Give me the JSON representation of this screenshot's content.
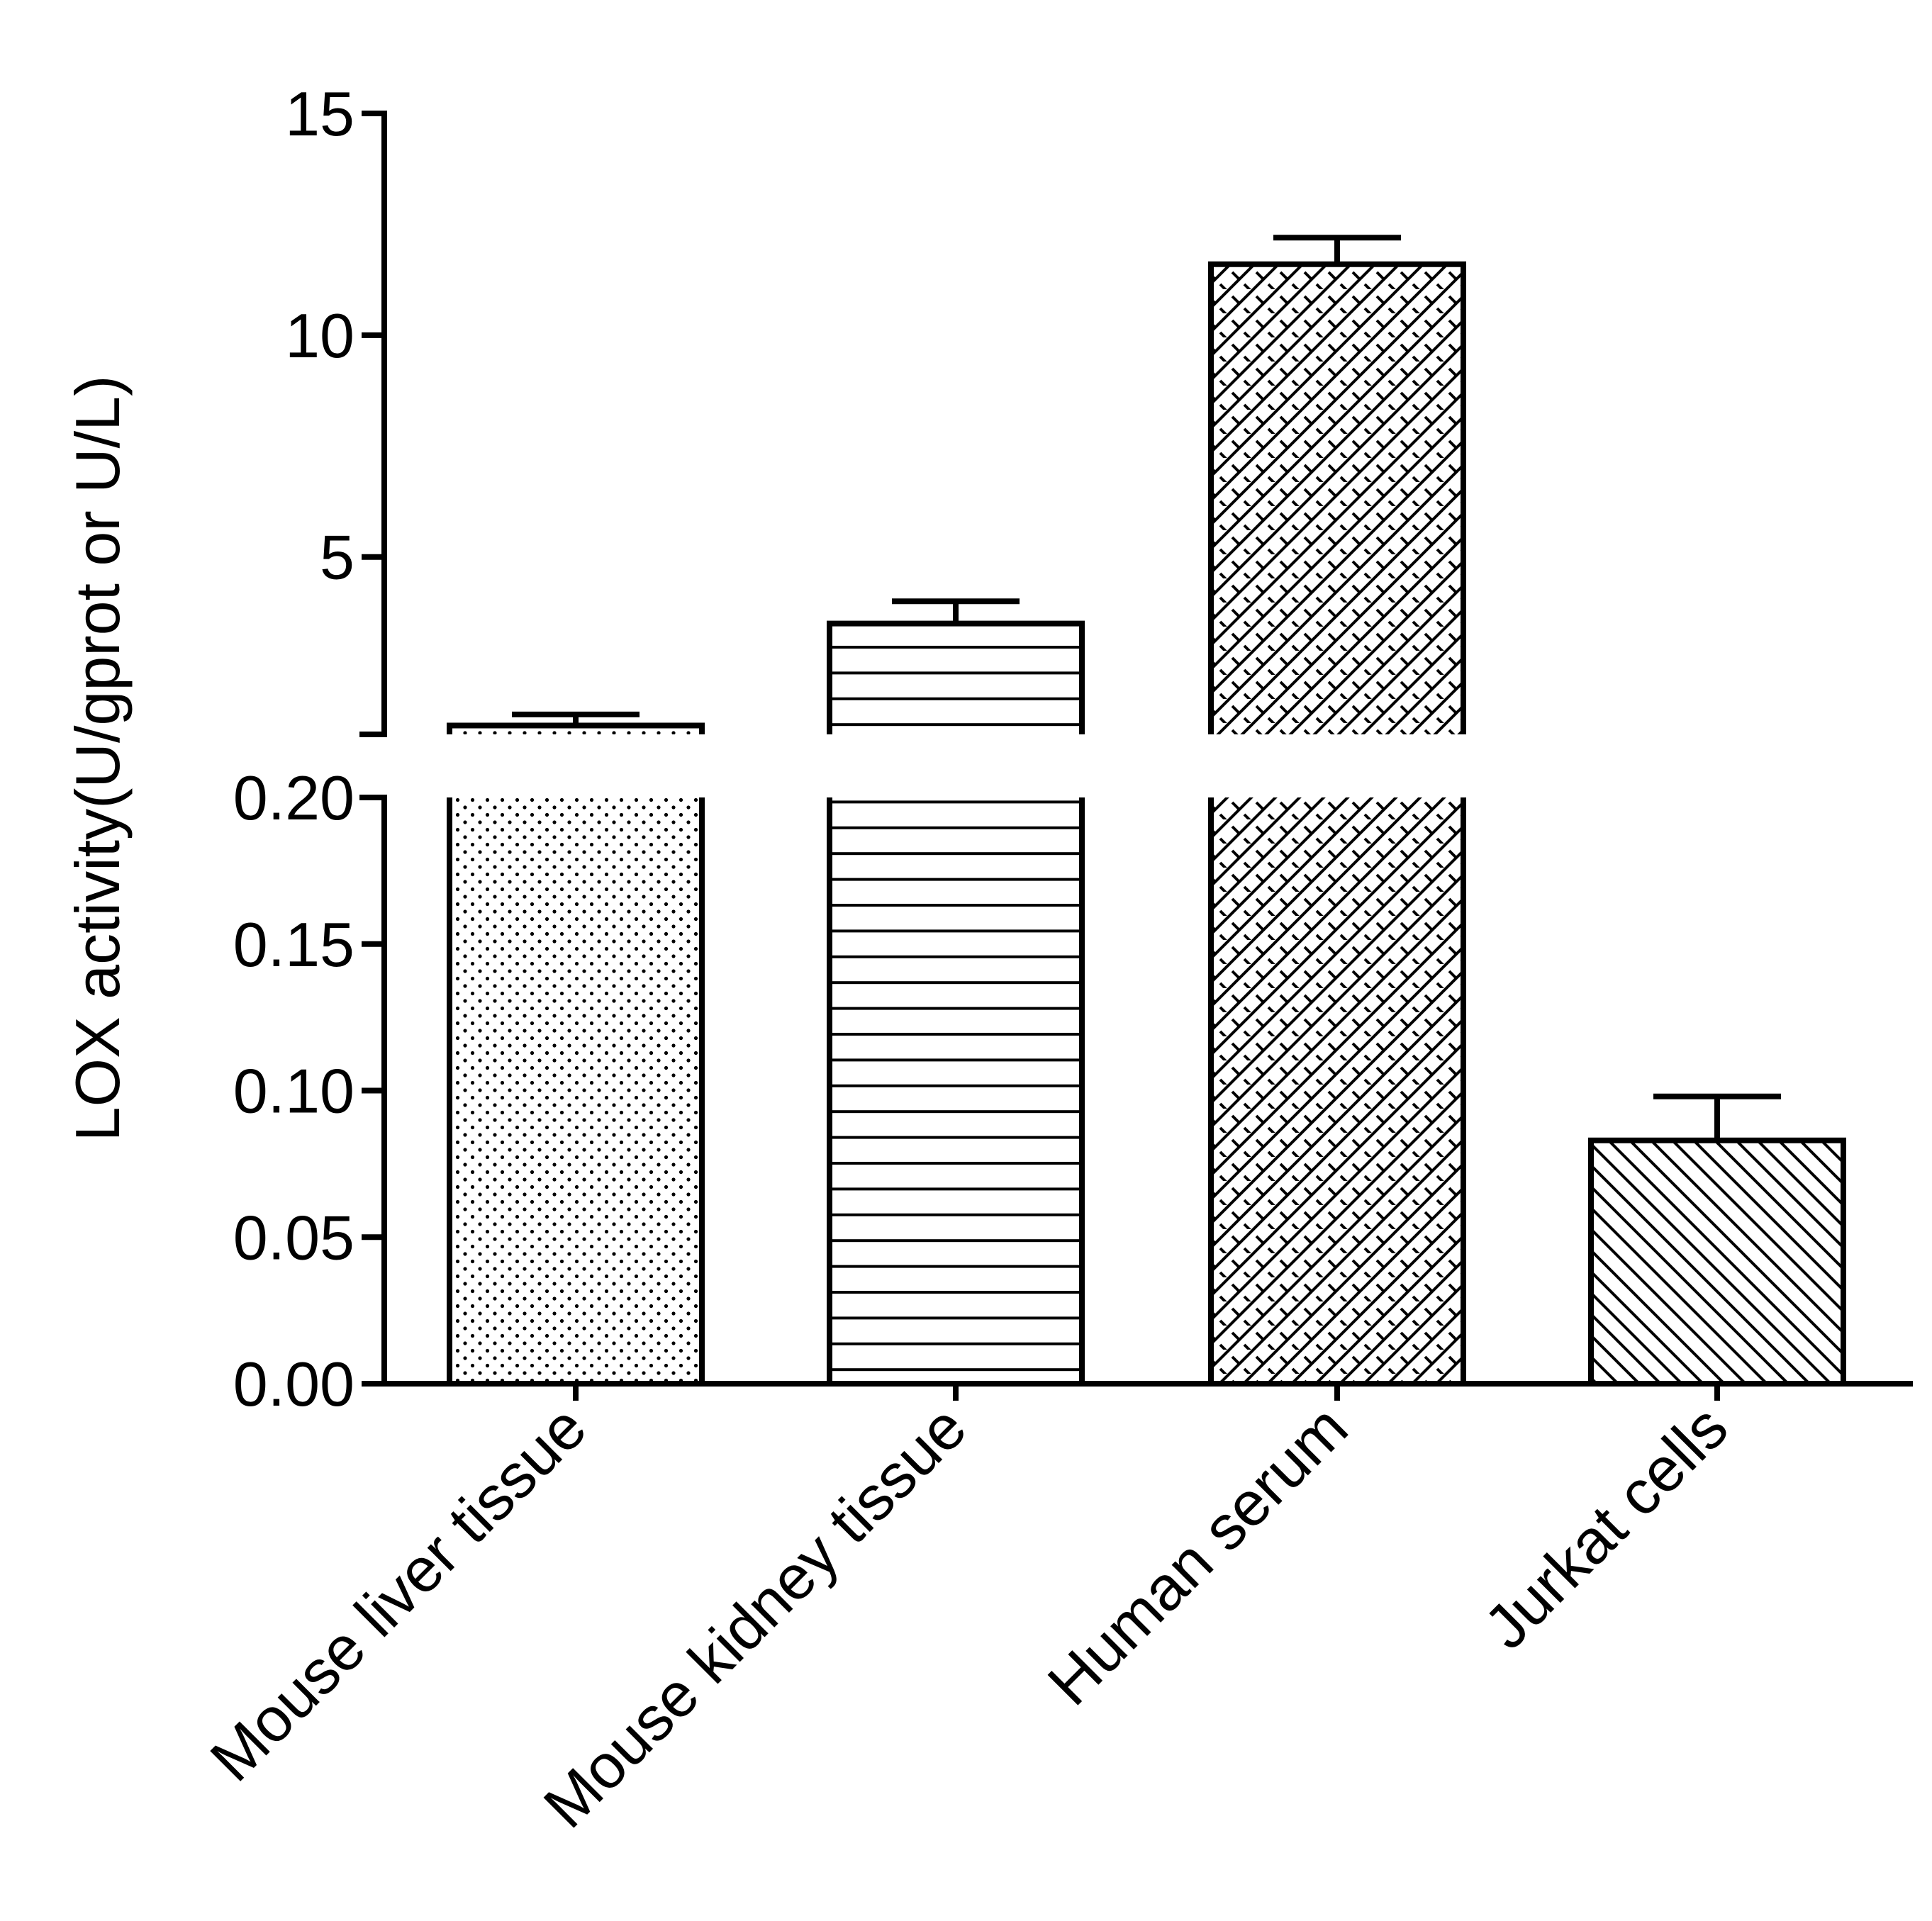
{
  "chart_data": {
    "type": "bar",
    "broken_axis": true,
    "ylabel": "LOX activity(U/gprot or U/L)",
    "xlabel": "",
    "title": "",
    "categories": [
      "Mouse liver tissue",
      "Mouse kidney tissue",
      "Human serum",
      "Jurkat cells"
    ],
    "values": [
      1.2,
      3.5,
      11.6,
      0.083
    ],
    "errors": [
      0.25,
      0.5,
      0.6,
      0.015
    ],
    "patterns": [
      "dots",
      "horizontal-lines",
      "brick-cross",
      "diagonal-lines"
    ],
    "lower_segment": {
      "ylim": [
        0,
        0.2
      ],
      "ticks": [
        "0.00",
        "0.05",
        "0.10",
        "0.15",
        "0.20"
      ]
    },
    "upper_segment": {
      "ylim": [
        1.0,
        15
      ],
      "ticks": [
        "5",
        "10",
        "15"
      ]
    },
    "grid": false,
    "legend": "none",
    "bar_fill": "#ffffff",
    "stroke_color": "#000000"
  }
}
